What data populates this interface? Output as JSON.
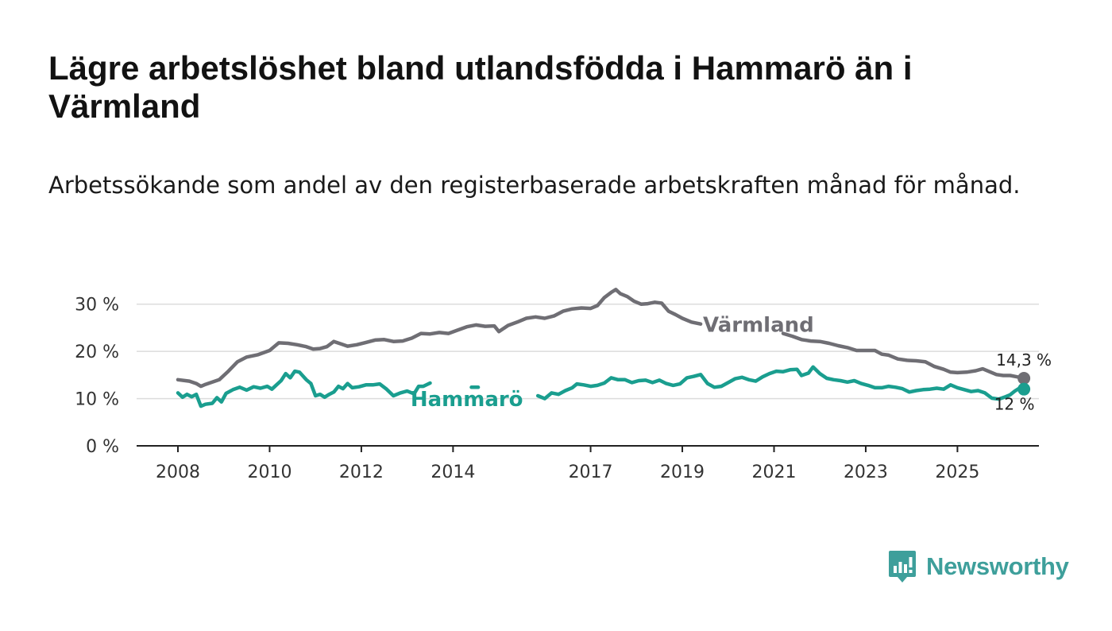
{
  "header": {
    "title": "Lägre arbetslöshet bland utlandsfödda i Hammarö än i Värmland",
    "subtitle": "Arbetssökande som andel av den registerbaserade arbetskraften månad för månad."
  },
  "brand": {
    "name": "Newsworthy",
    "color": "#3e9f9b",
    "icon": "bar-chart-icon"
  },
  "chart_data": {
    "type": "line",
    "title": "Lägre arbetslöshet bland utlandsfödda i Hammarö än i Värmland",
    "subtitle": "Arbetssökande som andel av den registerbaserade arbetskraften månad för månad.",
    "xlabel": "",
    "ylabel": "",
    "xlim": [
      2008.0,
      2026.75
    ],
    "ylim": [
      0,
      35
    ],
    "y_ticks": [
      0,
      10,
      20,
      30
    ],
    "y_tick_labels": [
      "0 %",
      "10 %",
      "20 %",
      "30 %"
    ],
    "x_ticks": [
      2008,
      2010,
      2012,
      2014,
      2017,
      2019,
      2021,
      2023,
      2025
    ],
    "x_tick_labels": [
      "2008",
      "2010",
      "2012",
      "2014",
      "2017",
      "2019",
      "2021",
      "2023",
      "2025"
    ],
    "grid": true,
    "series": [
      {
        "name": "Värmland",
        "color": "#6f6e74",
        "end_label": "14,3 %",
        "points": [
          [
            2008.0,
            14.0
          ],
          [
            2008.25,
            13.7
          ],
          [
            2008.4,
            13.2
          ],
          [
            2008.5,
            12.6
          ],
          [
            2008.6,
            13.0
          ],
          [
            2008.75,
            13.5
          ],
          [
            2008.9,
            14.0
          ],
          [
            2009.1,
            15.8
          ],
          [
            2009.3,
            17.8
          ],
          [
            2009.5,
            18.8
          ],
          [
            2009.75,
            19.3
          ],
          [
            2010.0,
            20.2
          ],
          [
            2010.1,
            21.0
          ],
          [
            2010.2,
            21.8
          ],
          [
            2010.4,
            21.7
          ],
          [
            2010.6,
            21.4
          ],
          [
            2010.8,
            21.0
          ],
          [
            2010.95,
            20.5
          ],
          [
            2011.1,
            20.6
          ],
          [
            2011.25,
            21.0
          ],
          [
            2011.4,
            22.1
          ],
          [
            2011.55,
            21.6
          ],
          [
            2011.7,
            21.1
          ],
          [
            2011.9,
            21.4
          ],
          [
            2012.1,
            21.9
          ],
          [
            2012.3,
            22.4
          ],
          [
            2012.5,
            22.5
          ],
          [
            2012.7,
            22.1
          ],
          [
            2012.9,
            22.2
          ],
          [
            2013.1,
            22.8
          ],
          [
            2013.3,
            23.8
          ],
          [
            2013.5,
            23.7
          ],
          [
            2013.7,
            24.0
          ],
          [
            2013.9,
            23.8
          ],
          [
            2014.1,
            24.5
          ],
          [
            2014.3,
            25.2
          ],
          [
            2014.5,
            25.6
          ],
          [
            2014.7,
            25.3
          ],
          [
            2014.9,
            25.4
          ],
          [
            2015.0,
            24.2
          ],
          [
            2015.2,
            25.5
          ],
          [
            2015.4,
            26.2
          ],
          [
            2015.6,
            27.0
          ],
          [
            2015.8,
            27.3
          ],
          [
            2016.0,
            27.0
          ],
          [
            2016.2,
            27.5
          ],
          [
            2016.4,
            28.5
          ],
          [
            2016.6,
            29.0
          ],
          [
            2016.8,
            29.2
          ],
          [
            2017.0,
            29.1
          ],
          [
            2017.15,
            29.7
          ],
          [
            2017.3,
            31.4
          ],
          [
            2017.45,
            32.5
          ],
          [
            2017.55,
            33.1
          ],
          [
            2017.65,
            32.2
          ],
          [
            2017.8,
            31.6
          ],
          [
            2017.95,
            30.6
          ],
          [
            2018.1,
            30.0
          ],
          [
            2018.25,
            30.1
          ],
          [
            2018.4,
            30.4
          ],
          [
            2018.55,
            30.2
          ],
          [
            2018.7,
            28.5
          ],
          [
            2018.85,
            27.8
          ],
          [
            2019.0,
            27.0
          ],
          [
            2019.2,
            26.2
          ],
          [
            2019.4,
            25.8
          ],
          [
            2021.2,
            23.8
          ],
          [
            2021.4,
            23.2
          ],
          [
            2021.6,
            22.5
          ],
          [
            2021.8,
            22.2
          ],
          [
            2022.0,
            22.1
          ],
          [
            2022.2,
            21.7
          ],
          [
            2022.4,
            21.2
          ],
          [
            2022.6,
            20.8
          ],
          [
            2022.8,
            20.2
          ],
          [
            2023.0,
            20.2
          ],
          [
            2023.2,
            20.2
          ],
          [
            2023.35,
            19.4
          ],
          [
            2023.5,
            19.2
          ],
          [
            2023.7,
            18.4
          ],
          [
            2023.9,
            18.1
          ],
          [
            2024.1,
            18.0
          ],
          [
            2024.3,
            17.8
          ],
          [
            2024.5,
            16.8
          ],
          [
            2024.7,
            16.2
          ],
          [
            2024.85,
            15.6
          ],
          [
            2025.0,
            15.5
          ],
          [
            2025.2,
            15.6
          ],
          [
            2025.4,
            15.9
          ],
          [
            2025.55,
            16.3
          ],
          [
            2025.7,
            15.7
          ],
          [
            2025.85,
            15.1
          ],
          [
            2026.0,
            14.9
          ],
          [
            2026.15,
            14.9
          ],
          [
            2026.3,
            14.6
          ],
          [
            2026.45,
            14.3
          ]
        ]
      },
      {
        "name": "Hammarö",
        "color": "#1a9e8f",
        "end_label": "12 %",
        "points": [
          [
            2008.0,
            11.2
          ],
          [
            2008.1,
            10.3
          ],
          [
            2008.2,
            10.9
          ],
          [
            2008.3,
            10.4
          ],
          [
            2008.4,
            10.9
          ],
          [
            2008.5,
            8.4
          ],
          [
            2008.6,
            8.8
          ],
          [
            2008.75,
            9.0
          ],
          [
            2008.85,
            10.2
          ],
          [
            2008.95,
            9.3
          ],
          [
            2009.05,
            11.1
          ],
          [
            2009.2,
            11.9
          ],
          [
            2009.35,
            12.4
          ],
          [
            2009.5,
            11.8
          ],
          [
            2009.65,
            12.5
          ],
          [
            2009.8,
            12.2
          ],
          [
            2009.95,
            12.6
          ],
          [
            2010.05,
            12.0
          ],
          [
            2010.15,
            12.9
          ],
          [
            2010.25,
            13.8
          ],
          [
            2010.35,
            15.3
          ],
          [
            2010.45,
            14.4
          ],
          [
            2010.55,
            15.8
          ],
          [
            2010.65,
            15.6
          ],
          [
            2010.8,
            14.0
          ],
          [
            2010.9,
            13.2
          ],
          [
            2011.0,
            10.6
          ],
          [
            2011.1,
            10.9
          ],
          [
            2011.2,
            10.3
          ],
          [
            2011.3,
            10.9
          ],
          [
            2011.4,
            11.4
          ],
          [
            2011.5,
            12.6
          ],
          [
            2011.6,
            12.1
          ],
          [
            2011.7,
            13.2
          ],
          [
            2011.8,
            12.3
          ],
          [
            2011.95,
            12.5
          ],
          [
            2012.1,
            12.9
          ],
          [
            2012.25,
            12.9
          ],
          [
            2012.4,
            13.1
          ],
          [
            2012.55,
            12.0
          ],
          [
            2012.7,
            10.6
          ],
          [
            2012.85,
            11.2
          ],
          [
            2013.0,
            11.6
          ],
          [
            2013.15,
            11.0
          ],
          [
            2013.25,
            12.6
          ],
          [
            2013.35,
            12.6
          ],
          [
            2013.5,
            13.3
          ],
          [
            2014.4,
            12.4
          ],
          [
            2014.55,
            12.4
          ],
          [
            2015.85,
            10.6
          ],
          [
            2016.0,
            10.0
          ],
          [
            2016.15,
            11.2
          ],
          [
            2016.3,
            10.9
          ],
          [
            2016.45,
            11.7
          ],
          [
            2016.6,
            12.3
          ],
          [
            2016.7,
            13.1
          ],
          [
            2016.85,
            12.9
          ],
          [
            2017.0,
            12.6
          ],
          [
            2017.15,
            12.8
          ],
          [
            2017.3,
            13.3
          ],
          [
            2017.45,
            14.4
          ],
          [
            2017.6,
            14.0
          ],
          [
            2017.75,
            14.0
          ],
          [
            2017.9,
            13.4
          ],
          [
            2018.05,
            13.8
          ],
          [
            2018.2,
            13.9
          ],
          [
            2018.35,
            13.4
          ],
          [
            2018.5,
            13.9
          ],
          [
            2018.65,
            13.2
          ],
          [
            2018.8,
            12.8
          ],
          [
            2018.95,
            13.1
          ],
          [
            2019.1,
            14.4
          ],
          [
            2019.25,
            14.7
          ],
          [
            2019.4,
            15.1
          ],
          [
            2019.55,
            13.2
          ],
          [
            2019.7,
            12.4
          ],
          [
            2019.85,
            12.6
          ],
          [
            2020.0,
            13.4
          ],
          [
            2020.15,
            14.2
          ],
          [
            2020.3,
            14.5
          ],
          [
            2020.45,
            14.0
          ],
          [
            2020.6,
            13.7
          ],
          [
            2020.75,
            14.6
          ],
          [
            2020.9,
            15.3
          ],
          [
            2021.05,
            15.8
          ],
          [
            2021.2,
            15.7
          ],
          [
            2021.35,
            16.1
          ],
          [
            2021.5,
            16.2
          ],
          [
            2021.6,
            14.9
          ],
          [
            2021.75,
            15.4
          ],
          [
            2021.85,
            16.7
          ],
          [
            2022.0,
            15.3
          ],
          [
            2022.15,
            14.3
          ],
          [
            2022.3,
            14.0
          ],
          [
            2022.45,
            13.8
          ],
          [
            2022.6,
            13.5
          ],
          [
            2022.75,
            13.8
          ],
          [
            2022.9,
            13.2
          ],
          [
            2023.05,
            12.8
          ],
          [
            2023.2,
            12.3
          ],
          [
            2023.35,
            12.3
          ],
          [
            2023.5,
            12.6
          ],
          [
            2023.65,
            12.4
          ],
          [
            2023.8,
            12.1
          ],
          [
            2023.95,
            11.4
          ],
          [
            2024.1,
            11.7
          ],
          [
            2024.25,
            11.9
          ],
          [
            2024.4,
            12.0
          ],
          [
            2024.55,
            12.2
          ],
          [
            2024.7,
            12.0
          ],
          [
            2024.85,
            12.9
          ],
          [
            2025.0,
            12.3
          ],
          [
            2025.15,
            11.9
          ],
          [
            2025.3,
            11.5
          ],
          [
            2025.45,
            11.7
          ],
          [
            2025.6,
            11.2
          ],
          [
            2025.75,
            10.1
          ],
          [
            2025.9,
            9.9
          ],
          [
            2026.05,
            10.4
          ],
          [
            2026.15,
            10.8
          ],
          [
            2026.25,
            11.6
          ],
          [
            2026.35,
            12.2
          ],
          [
            2026.45,
            12.0
          ]
        ]
      }
    ]
  }
}
